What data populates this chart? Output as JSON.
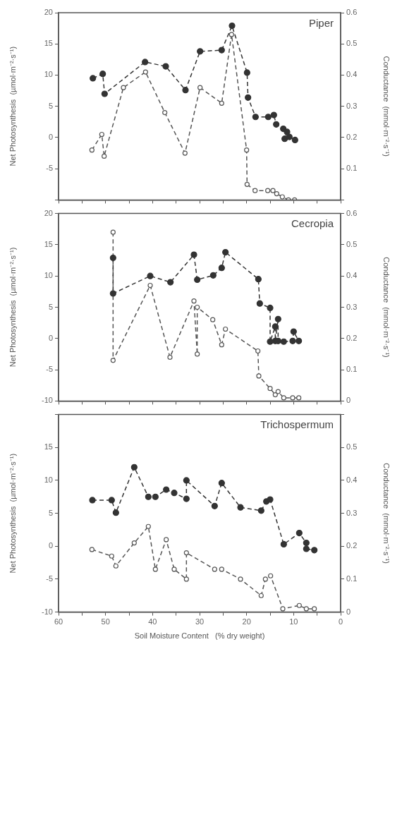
{
  "chart_data": [
    {
      "type": "line",
      "title": "Piper",
      "ylabel": "Net Photosynthesis  (µmol·m⁻²·s⁻¹)",
      "y2label": "Conductance  (mmol·m⁻²·s⁻¹)",
      "xlim": [
        60,
        0
      ],
      "xticks": [
        {
          "value": 60,
          "label": null
        },
        {
          "value": 55,
          "label": null
        },
        {
          "value": 50,
          "label": null
        },
        {
          "value": 45,
          "label": null
        },
        {
          "value": 40,
          "label": null
        },
        {
          "value": 35,
          "label": null
        },
        {
          "value": 30,
          "label": null
        },
        {
          "value": 25,
          "label": null
        },
        {
          "value": 20,
          "label": null
        },
        {
          "value": 15,
          "label": null
        },
        {
          "value": 10,
          "label": null
        },
        {
          "value": 5,
          "label": null
        },
        {
          "value": 0,
          "label": null
        }
      ],
      "ylim": [
        -10,
        20
      ],
      "yticks": [
        {
          "value": -10,
          "label": null
        },
        -5,
        0,
        5,
        10,
        15,
        20
      ],
      "y2lim": [
        0,
        0.6
      ],
      "y2ticks": [
        {
          "value": 0,
          "label": null
        },
        0.1,
        0.2,
        0.3,
        0.4,
        0.5,
        0.6
      ],
      "tick_labels": "y",
      "grid": false,
      "legend": false,
      "marker": "circle",
      "line_style": "dashed",
      "series": [
        {
          "color": "#333333",
          "x": [
            52.7,
            50.6,
            50.2,
            41.6,
            37.2,
            33.0,
            29.9,
            25.3,
            23.1,
            19.9,
            19.7,
            18.1,
            15.4,
            14.2,
            13.7,
            12.2,
            11.4,
            11.9,
            10.9,
            9.7
          ],
          "values": [
            9.5,
            10.2,
            7.0,
            12.1,
            11.4,
            7.6,
            13.8,
            14.0,
            17.9,
            10.4,
            6.4,
            3.3,
            3.3,
            3.6,
            2.1,
            1.4,
            0.9,
            -0.2,
            0.1,
            -0.4
          ]
        },
        {
          "color": "#555555",
          "axis": "y2",
          "x": [
            52.9,
            50.8,
            50.3,
            46.2,
            41.5,
            37.4,
            33.1,
            29.9,
            25.3,
            23.2,
            20.0,
            19.9,
            18.2,
            15.5,
            14.4,
            13.6,
            12.4,
            11.1,
            9.8
          ],
          "values": [
            0.16,
            0.21,
            0.14,
            0.36,
            0.41,
            0.28,
            0.15,
            0.36,
            0.31,
            0.53,
            0.16,
            0.05,
            0.03,
            0.03,
            0.03,
            0.02,
            0.01,
            0.0,
            0.0
          ]
        }
      ]
    },
    {
      "type": "line",
      "title": "Cecropia",
      "ylabel": "Net Photosynthesis  (µmol·m⁻²·s⁻¹)",
      "y2label": "Conductance  (mmol·m⁻²·s⁻¹)",
      "xlim": [
        60,
        0
      ],
      "xticks": [
        {
          "value": 60,
          "label": null
        },
        {
          "value": 55,
          "label": null
        },
        {
          "value": 50,
          "label": null
        },
        {
          "value": 45,
          "label": null
        },
        {
          "value": 40,
          "label": null
        },
        {
          "value": 35,
          "label": null
        },
        {
          "value": 30,
          "label": null
        },
        {
          "value": 25,
          "label": null
        },
        {
          "value": 20,
          "label": null
        },
        {
          "value": 15,
          "label": null
        },
        {
          "value": 10,
          "label": null
        },
        {
          "value": 5,
          "label": null
        },
        {
          "value": 0,
          "label": null
        }
      ],
      "ylim": [
        -10,
        20
      ],
      "yticks": [
        -10,
        -5,
        0,
        5,
        10,
        15,
        20
      ],
      "y2lim": [
        0,
        0.6
      ],
      "y2ticks": [
        0,
        0.1,
        0.2,
        0.3,
        0.4,
        0.5,
        0.6
      ],
      "tick_labels": "y",
      "grid": false,
      "legend": false,
      "marker": "circle",
      "line_style": "dashed",
      "series": [
        {
          "color": "#333333",
          "x": [
            48.4,
            48.4,
            40.5,
            36.2,
            31.2,
            30.5,
            27.1,
            25.3,
            24.5,
            17.5,
            17.2,
            15.0,
            15.0,
            13.9,
            13.9,
            13.3,
            13.3,
            12.1,
            10.2,
            10.0,
            8.9
          ],
          "values": [
            12.9,
            7.2,
            10.0,
            9.0,
            13.4,
            9.4,
            10.1,
            11.3,
            13.8,
            9.5,
            5.6,
            4.9,
            -0.5,
            1.9,
            -0.4,
            3.1,
            -0.4,
            -0.5,
            -0.4,
            1.1,
            -0.4
          ]
        },
        {
          "color": "#555555",
          "axis": "y2",
          "x": [
            48.4,
            48.4,
            40.5,
            36.3,
            31.2,
            30.5,
            30.5,
            27.2,
            25.3,
            24.5,
            17.6,
            17.4,
            15.0,
            13.9,
            13.3,
            12.1,
            10.2,
            8.9
          ],
          "values": [
            0.54,
            0.13,
            0.37,
            0.14,
            0.32,
            0.15,
            0.3,
            0.26,
            0.18,
            0.23,
            0.16,
            0.08,
            0.04,
            0.02,
            0.03,
            0.01,
            0.01,
            0.01
          ]
        }
      ]
    },
    {
      "type": "line",
      "title": "Trichospermum",
      "ylabel": "Net Photosynthesis  (µmol·m⁻²·s⁻¹)",
      "y2label": "Conductance  (mmol·m⁻²·s⁻¹)",
      "xlabel": "Soil Moisture Content   (% dry weight)",
      "xlim": [
        60,
        0
      ],
      "xticks": [
        60,
        {
          "value": 55,
          "label": null
        },
        50,
        {
          "value": 45,
          "label": null
        },
        40,
        {
          "value": 35,
          "label": null
        },
        30,
        {
          "value": 25,
          "label": null
        },
        20,
        {
          "value": 15,
          "label": null
        },
        10,
        {
          "value": 5,
          "label": null
        },
        0
      ],
      "ylim": [
        -10,
        20
      ],
      "yticks": [
        -10,
        -5,
        0,
        5,
        10,
        15,
        {
          "value": 20,
          "label": null
        }
      ],
      "y2lim": [
        0,
        0.6
      ],
      "y2ticks": [
        0,
        0.1,
        0.2,
        0.3,
        0.4,
        0.5,
        {
          "value": 0.6,
          "label": null
        }
      ],
      "grid": false,
      "legend": false,
      "marker": "circle",
      "line_style": "dashed",
      "series": [
        {
          "color": "#333333",
          "x": [
            52.8,
            48.7,
            47.8,
            43.9,
            40.9,
            39.4,
            37.1,
            35.4,
            32.8,
            32.8,
            26.8,
            25.3,
            21.3,
            16.9,
            15.8,
            15.0,
            12.1,
            8.8,
            7.3,
            7.3,
            5.6
          ],
          "values": [
            7.0,
            7.0,
            5.1,
            12.0,
            7.5,
            7.5,
            8.6,
            8.1,
            7.2,
            10.0,
            6.1,
            9.6,
            5.9,
            5.4,
            6.8,
            7.1,
            0.3,
            2.0,
            0.5,
            -0.4,
            -0.6
          ]
        },
        {
          "color": "#555555",
          "axis": "y2",
          "x": [
            52.9,
            48.7,
            47.8,
            43.9,
            40.9,
            39.4,
            37.1,
            35.4,
            32.8,
            32.8,
            26.8,
            25.3,
            21.3,
            16.9,
            16.0,
            14.9,
            12.3,
            8.8,
            7.3,
            5.6
          ],
          "values": [
            0.19,
            0.17,
            0.14,
            0.21,
            0.26,
            0.13,
            0.22,
            0.13,
            0.1,
            0.18,
            0.13,
            0.13,
            0.1,
            0.05,
            0.1,
            0.11,
            0.01,
            0.02,
            0.01,
            0.01
          ]
        }
      ]
    }
  ]
}
